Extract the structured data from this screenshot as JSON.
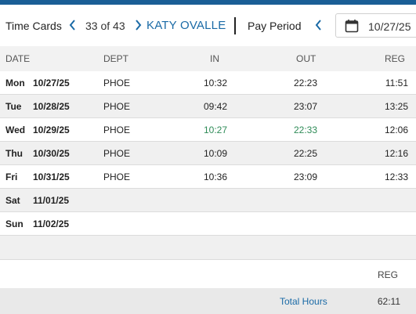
{
  "header": {
    "title": "Time Cards",
    "counter": "33 of 43",
    "employee": "KATY OVALLE",
    "pay_period_label": "Pay Period",
    "date_value": "10/27/25"
  },
  "columns": {
    "date": "DATE",
    "dept": "DEPT",
    "in": "IN",
    "out": "OUT",
    "reg": "REG"
  },
  "rows": [
    {
      "day": "Mon",
      "date": "10/27/25",
      "dept": "PHOE",
      "in": "10:32",
      "out": "22:23",
      "reg": "11:51"
    },
    {
      "day": "Tue",
      "date": "10/28/25",
      "dept": "PHOE",
      "in": "09:42",
      "out": "23:07",
      "reg": "13:25"
    },
    {
      "day": "Wed",
      "date": "10/29/25",
      "dept": "PHOE",
      "in": "10:27",
      "out": "22:33",
      "reg": "12:06"
    },
    {
      "day": "Thu",
      "date": "10/30/25",
      "dept": "PHOE",
      "in": "10:09",
      "out": "22:25",
      "reg": "12:16"
    },
    {
      "day": "Fri",
      "date": "10/31/25",
      "dept": "PHOE",
      "in": "10:36",
      "out": "23:09",
      "reg": "12:33"
    },
    {
      "day": "Sat",
      "date": "11/01/25",
      "dept": "",
      "in": "",
      "out": "",
      "reg": ""
    },
    {
      "day": "Sun",
      "date": "11/02/25",
      "dept": "",
      "in": "",
      "out": "",
      "reg": ""
    }
  ],
  "summary": {
    "reg_label": "REG",
    "total_label": "Total Hours",
    "total_value": "62:11"
  },
  "colors": {
    "accent": "#1a6aa6",
    "highlight": "#2e8b57"
  }
}
